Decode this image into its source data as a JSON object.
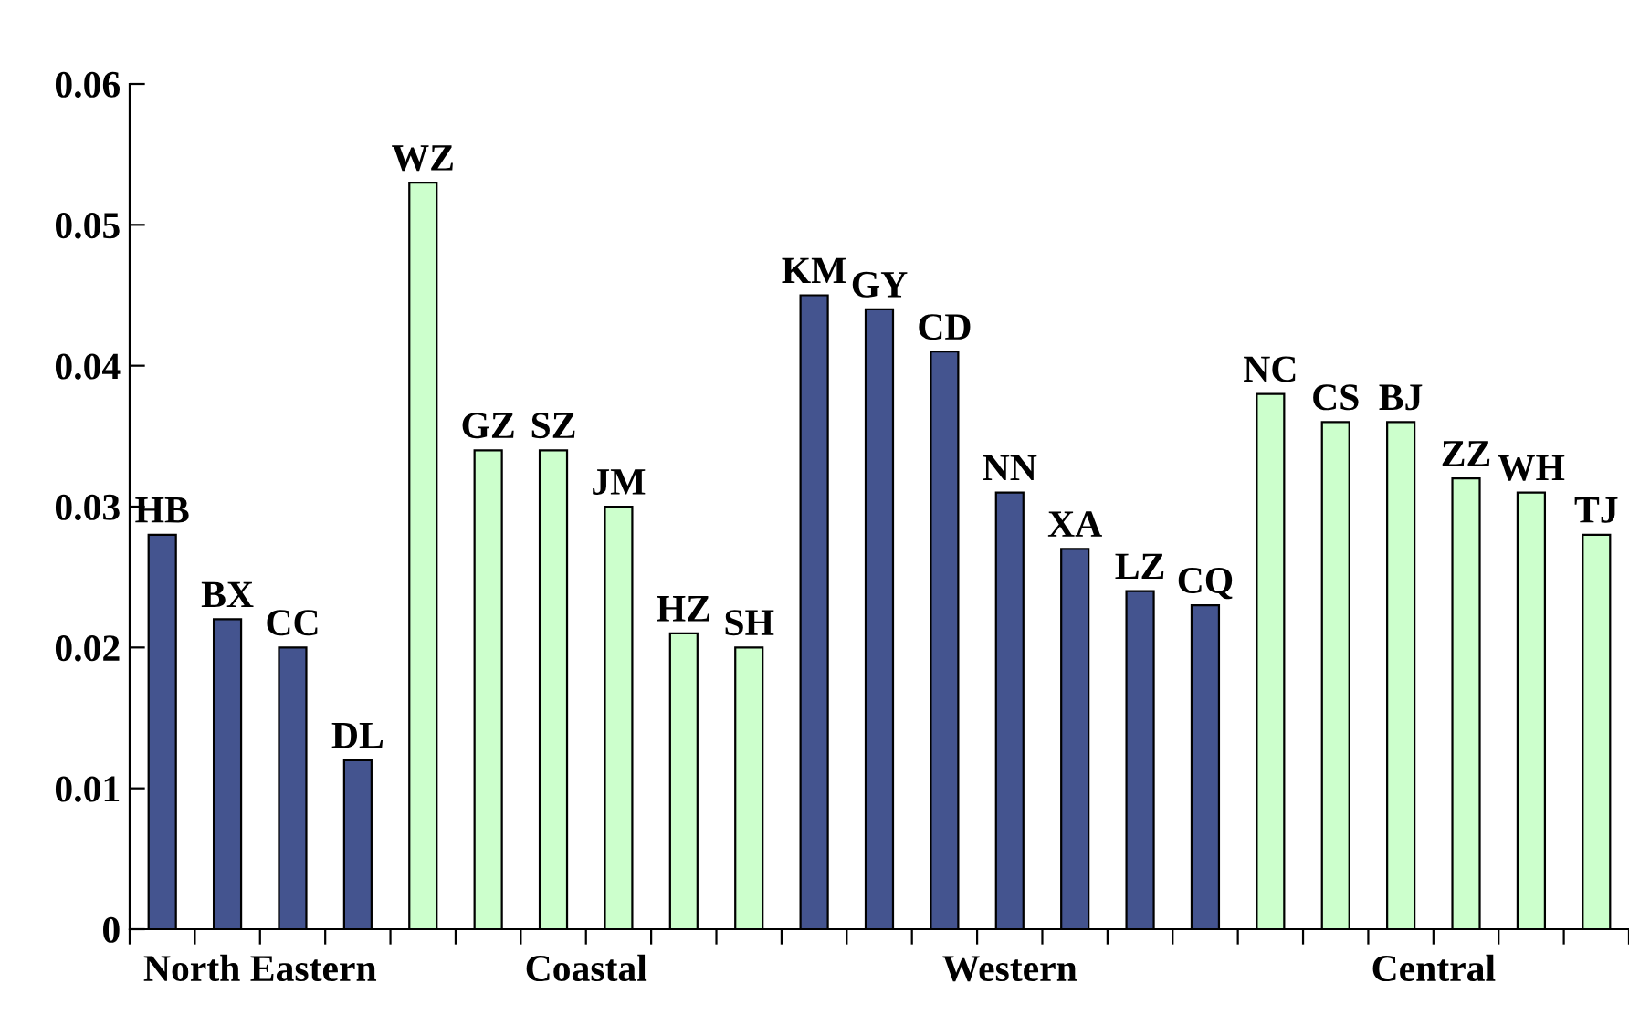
{
  "chart_data": {
    "type": "bar",
    "categories": [
      "HB",
      "BX",
      "CC",
      "DL",
      "WZ",
      "GZ",
      "SZ",
      "JM",
      "HZ",
      "SH",
      "KM",
      "GY",
      "CD",
      "NN",
      "XA",
      "LZ",
      "CQ",
      "NC",
      "CS",
      "BJ",
      "ZZ",
      "WH",
      "TJ"
    ],
    "values": [
      0.028,
      0.022,
      0.02,
      0.012,
      0.053,
      0.034,
      0.034,
      0.03,
      0.021,
      0.02,
      0.045,
      0.044,
      0.041,
      0.031,
      0.027,
      0.024,
      0.023,
      0.038,
      0.036,
      0.036,
      0.032,
      0.031,
      0.028
    ],
    "colors": [
      "#44548f",
      "#44548f",
      "#44548f",
      "#44548f",
      "#ccffcc",
      "#ccffcc",
      "#ccffcc",
      "#ccffcc",
      "#ccffcc",
      "#ccffcc",
      "#44548f",
      "#44548f",
      "#44548f",
      "#44548f",
      "#44548f",
      "#44548f",
      "#44548f",
      "#ccffcc",
      "#ccffcc",
      "#ccffcc",
      "#ccffcc",
      "#ccffcc",
      "#ccffcc"
    ],
    "ylim": [
      0,
      0.06
    ],
    "yticks": [
      {
        "value": 0,
        "label": "0"
      },
      {
        "value": 0.01,
        "label": "0.01"
      },
      {
        "value": 0.02,
        "label": "0.02"
      },
      {
        "value": 0.03,
        "label": "0.03"
      },
      {
        "value": 0.04,
        "label": "0.04"
      },
      {
        "value": 0.05,
        "label": "0.05"
      },
      {
        "value": 0.06,
        "label": "0.06"
      }
    ],
    "annotations": [
      "North Eastern",
      "Coastal",
      "Western",
      "Central"
    ],
    "grid": false,
    "legend": false
  }
}
